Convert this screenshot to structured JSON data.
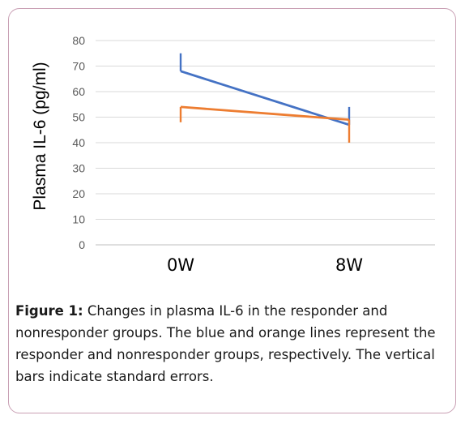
{
  "chart_data": {
    "type": "line",
    "ylabel": "Plasma IL-6 (pg/ml)",
    "xlabel": "",
    "categories": [
      "0W",
      "8W"
    ],
    "ylim": [
      0,
      80
    ],
    "yticks": [
      0,
      10,
      20,
      30,
      40,
      50,
      60,
      70,
      80
    ],
    "grid": true,
    "legend": "none",
    "series": [
      {
        "values": [
          68,
          47
        ],
        "error": [
          7,
          7
        ],
        "error_direction": [
          "up",
          "up"
        ],
        "color": "#4472c4"
      },
      {
        "values": [
          54,
          49
        ],
        "error": [
          6,
          9
        ],
        "error_direction": [
          "down",
          "down"
        ],
        "color": "#ed7d31"
      }
    ]
  },
  "caption": {
    "label": "Figure 1:",
    "text": " Changes in plasma IL-6 in the responder and nonresponder groups. The blue and orange lines represent the responder and nonresponder groups, respectively. The vertical bars indicate standard errors."
  }
}
